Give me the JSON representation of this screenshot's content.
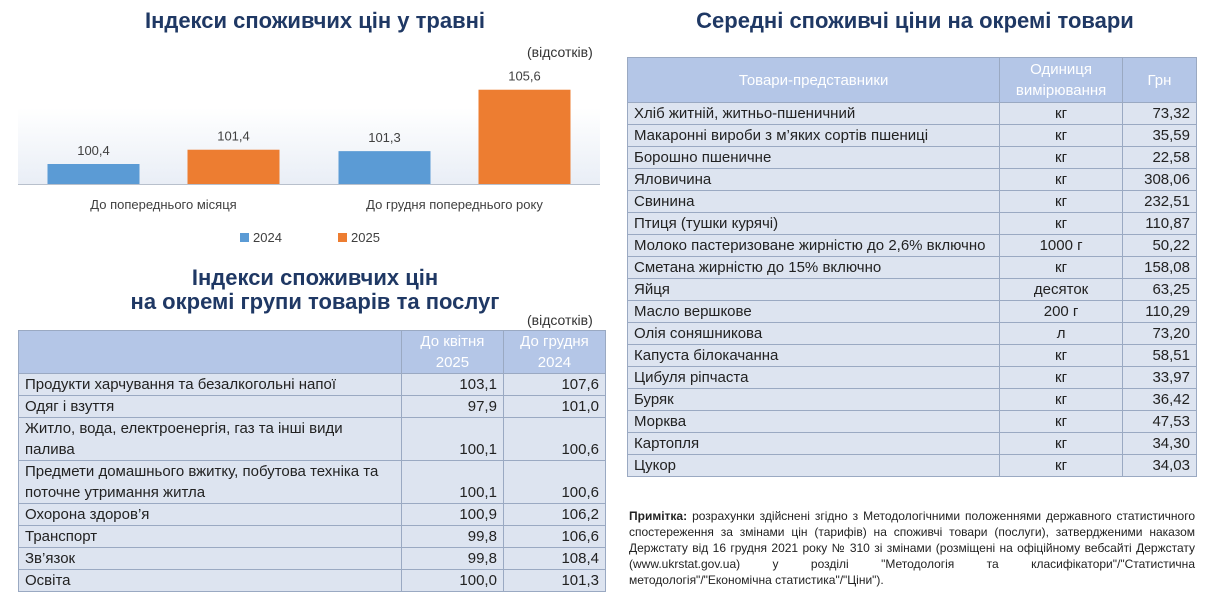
{
  "left": {
    "title": "Індекси споживчих цін у травні",
    "unit": "(відсотків)"
  },
  "chart_data": {
    "type": "bar",
    "categories": [
      "До попереднього місяця",
      "До грудня попереднього року"
    ],
    "series": [
      {
        "name": "2024",
        "values": [
          100.4,
          101.3
        ],
        "color": "#5b9bd5"
      },
      {
        "name": "2025",
        "values": [
          101.4,
          105.6
        ],
        "color": "#ed7d31"
      }
    ],
    "data_labels": [
      [
        "100,4",
        "101,3"
      ],
      [
        "101,4",
        "105,6"
      ]
    ],
    "baseline": 99,
    "ylim": [
      99,
      106
    ],
    "legend": "bottom-center",
    "grid": false
  },
  "groups": {
    "title_line1": "Індекси споживчих цін",
    "title_line2": "на окремі групи товарів та послуг",
    "unit": "(відсотків)",
    "col1": "До квітня 2025",
    "col2": "До грудня 2024",
    "rows": [
      {
        "name": "Продукти харчування та безалкогольні напої",
        "a": "103,1",
        "b": "107,6"
      },
      {
        "name": "Одяг і взуття",
        "a": "97,9",
        "b": "101,0"
      },
      {
        "name": "Житло, вода, електроенергія, газ та інші види палива",
        "a": "100,1",
        "b": "100,6"
      },
      {
        "name": "Предмети домашнього вжитку, побутова техніка та поточне утримання житла",
        "a": "100,1",
        "b": "100,6"
      },
      {
        "name": "Охорона здоров’я",
        "a": "100,9",
        "b": "106,2"
      },
      {
        "name": "Транспорт",
        "a": "99,8",
        "b": "106,6"
      },
      {
        "name": "Зв’язок",
        "a": "99,8",
        "b": "108,4"
      },
      {
        "name": "Освіта",
        "a": "100,0",
        "b": "101,3"
      }
    ]
  },
  "prices": {
    "title": "Середні споживчі ціни на окремі товари",
    "col_goods": "Товари-представники",
    "col_unit": "Одиниця вимірювання",
    "col_price": "Грн",
    "rows": [
      {
        "name": "Хліб житній, житньо-пшеничний",
        "unit": "кг",
        "price": "73,32"
      },
      {
        "name": "Макаронні вироби з м’яких сортів пшениці",
        "unit": "кг",
        "price": "35,59"
      },
      {
        "name": "Борошно пшеничне",
        "unit": "кг",
        "price": "22,58"
      },
      {
        "name": "Яловичина",
        "unit": "кг",
        "price": "308,06"
      },
      {
        "name": "Свинина",
        "unit": "кг",
        "price": "232,51"
      },
      {
        "name": "Птиця (тушки курячі)",
        "unit": "кг",
        "price": "110,87"
      },
      {
        "name": "Молоко пастеризоване жирністю до 2,6% включно",
        "unit": "1000 г",
        "price": "50,22"
      },
      {
        "name": "Сметана жирністю до 15% включно",
        "unit": "кг",
        "price": "158,08"
      },
      {
        "name": "Яйця",
        "unit": "десяток",
        "price": "63,25"
      },
      {
        "name": "Масло вершкове",
        "unit": "200 г",
        "price": "110,29"
      },
      {
        "name": "Олія соняшникова",
        "unit": "л",
        "price": "73,20"
      },
      {
        "name": "Капуста білокачанна",
        "unit": "кг",
        "price": "58,51"
      },
      {
        "name": "Цибуля ріпчаста",
        "unit": "кг",
        "price": "33,97"
      },
      {
        "name": "Буряк",
        "unit": "кг",
        "price": "36,42"
      },
      {
        "name": "Морква",
        "unit": "кг",
        "price": "47,53"
      },
      {
        "name": "Картопля",
        "unit": "кг",
        "price": "34,30"
      },
      {
        "name": "Цукор",
        "unit": "кг",
        "price": "34,03"
      }
    ]
  },
  "note": {
    "label": "Примітка:",
    "text": " розрахунки здійснені згідно з Методологічними положеннями державного статистичного спостереження за змінами цін (тарифів) на споживчі товари (послуги), затвердженими наказом Держстату від 16 грудня 2021 року № 310 зі змінами (розміщені на офіційному вебсайті Держстату (www.ukrstat.gov.ua) у розділі \"Методологія та класифікатори\"/\"Статистична методологія\"/\"Економічна статистика\"/\"Ціни\")."
  }
}
